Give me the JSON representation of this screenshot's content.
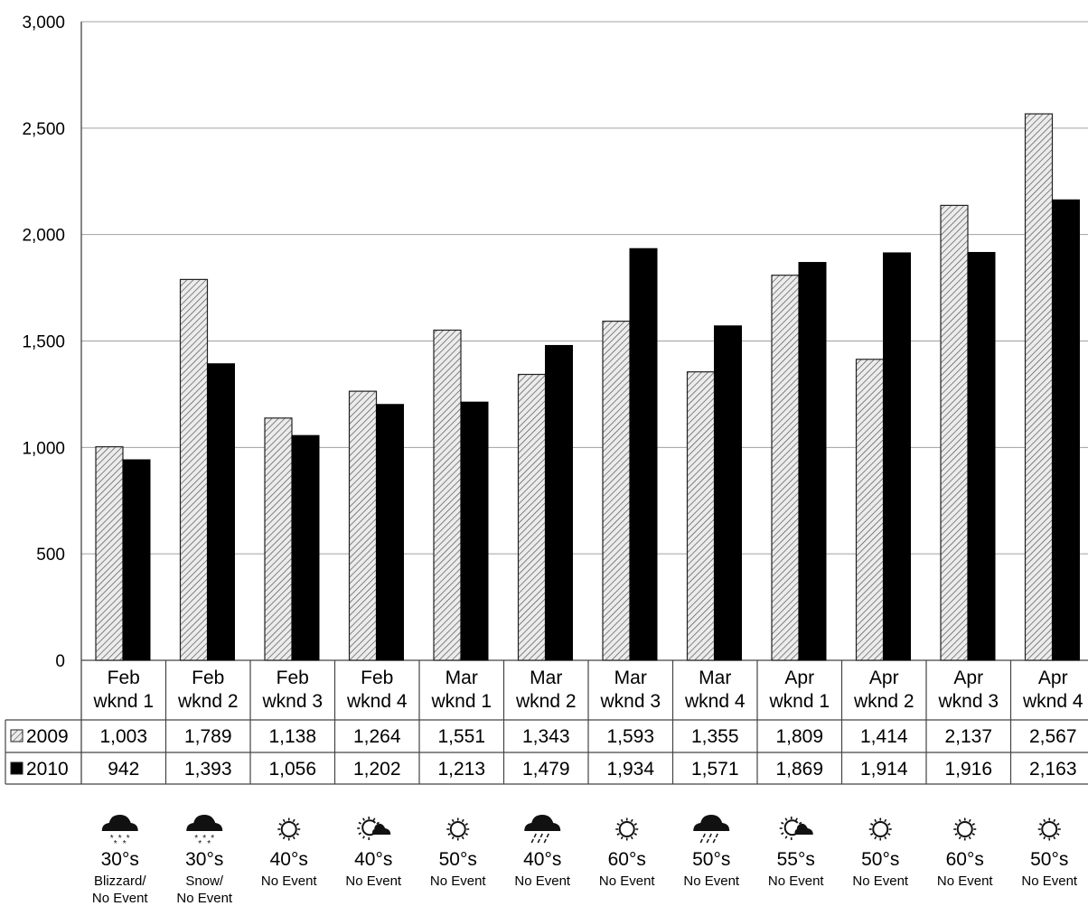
{
  "chart_data": {
    "type": "bar",
    "ylim": [
      0,
      3000
    ],
    "yticks": [
      0,
      500,
      1000,
      1500,
      2000,
      2500,
      3000
    ],
    "ytick_labels": [
      "0",
      "500",
      "1,000",
      "1,500",
      "2,000",
      "2,500",
      "3,000"
    ],
    "grid": true,
    "categories": [
      {
        "line1": "Feb",
        "line2": "wknd 1"
      },
      {
        "line1": "Feb",
        "line2": "wknd 2"
      },
      {
        "line1": "Feb",
        "line2": "wknd 3"
      },
      {
        "line1": "Feb",
        "line2": "wknd 4"
      },
      {
        "line1": "Mar",
        "line2": "wknd 1"
      },
      {
        "line1": "Mar",
        "line2": "wknd 2"
      },
      {
        "line1": "Mar",
        "line2": "wknd 3"
      },
      {
        "line1": "Mar",
        "line2": "wknd 4"
      },
      {
        "line1": "Apr",
        "line2": "wknd 1"
      },
      {
        "line1": "Apr",
        "line2": "wknd 2"
      },
      {
        "line1": "Apr",
        "line2": "wknd 3"
      },
      {
        "line1": "Apr",
        "line2": "wknd 4"
      }
    ],
    "series": [
      {
        "name": "2009",
        "pattern": "hatched",
        "color": "#d0d0d0",
        "values": [
          1003,
          1789,
          1138,
          1264,
          1551,
          1343,
          1593,
          1355,
          1809,
          1414,
          2137,
          2567
        ],
        "labels": [
          "1,003",
          "1,789",
          "1,138",
          "1,264",
          "1,551",
          "1,343",
          "1,593",
          "1,355",
          "1,809",
          "1,414",
          "2,137",
          "2,567"
        ]
      },
      {
        "name": "2010",
        "pattern": "solid",
        "color": "#000000",
        "values": [
          942,
          1393,
          1056,
          1202,
          1213,
          1479,
          1934,
          1571,
          1869,
          1914,
          1916,
          2163
        ],
        "labels": [
          "942",
          "1,393",
          "1,056",
          "1,202",
          "1,213",
          "1,479",
          "1,934",
          "1,571",
          "1,869",
          "1,914",
          "1,916",
          "2,163"
        ]
      }
    ],
    "weather": [
      {
        "icon": "snow-cloud-icon",
        "temp": "30°s",
        "event": [
          "Blizzard/",
          "No Event"
        ]
      },
      {
        "icon": "snow-cloud-icon",
        "temp": "30°s",
        "event": [
          "Snow/",
          "No Event"
        ]
      },
      {
        "icon": "sun-icon",
        "temp": "40°s",
        "event": [
          "No Event"
        ]
      },
      {
        "icon": "partly-cloudy-icon",
        "temp": "40°s",
        "event": [
          "No Event"
        ]
      },
      {
        "icon": "sun-icon",
        "temp": "50°s",
        "event": [
          "No Event"
        ]
      },
      {
        "icon": "rain-cloud-icon",
        "temp": "40°s",
        "event": [
          "No Event"
        ]
      },
      {
        "icon": "sun-icon",
        "temp": "60°s",
        "event": [
          "No Event"
        ]
      },
      {
        "icon": "rain-cloud-icon",
        "temp": "50°s",
        "event": [
          "No Event"
        ]
      },
      {
        "icon": "partly-cloudy-icon",
        "temp": "55°s",
        "event": [
          "No Event"
        ]
      },
      {
        "icon": "sun-icon",
        "temp": "50°s",
        "event": [
          "No Event"
        ]
      },
      {
        "icon": "sun-icon",
        "temp": "60°s",
        "event": [
          "No Event"
        ]
      },
      {
        "icon": "sun-icon",
        "temp": "50°s",
        "event": [
          "No Event"
        ]
      }
    ]
  }
}
